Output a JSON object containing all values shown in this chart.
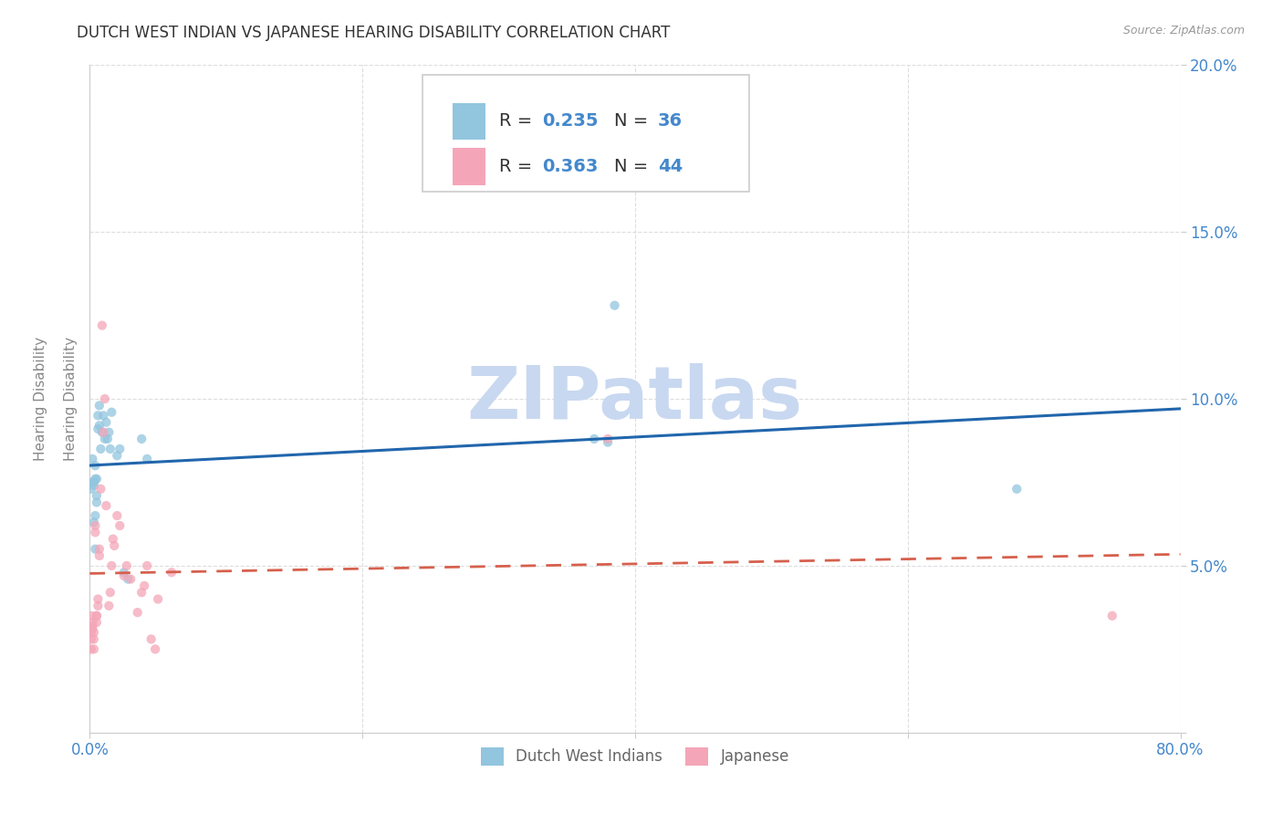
{
  "title": "DUTCH WEST INDIAN VS JAPANESE HEARING DISABILITY CORRELATION CHART",
  "source": "Source: ZipAtlas.com",
  "ylabel": "Hearing Disability",
  "watermark": "ZIPatlas",
  "legend_blue_r": "0.235",
  "legend_blue_n": "36",
  "legend_pink_r": "0.363",
  "legend_pink_n": "44",
  "legend_label_blue": "Dutch West Indians",
  "legend_label_pink": "Japanese",
  "xlim": [
    0.0,
    0.8
  ],
  "ylim": [
    0.0,
    0.2
  ],
  "xticks": [
    0.0,
    0.2,
    0.4,
    0.6,
    0.8
  ],
  "yticks": [
    0.0,
    0.05,
    0.1,
    0.15,
    0.2
  ],
  "blue_scatter_x": [
    0.001,
    0.002,
    0.002,
    0.003,
    0.003,
    0.003,
    0.004,
    0.004,
    0.004,
    0.004,
    0.005,
    0.005,
    0.005,
    0.006,
    0.006,
    0.007,
    0.007,
    0.008,
    0.009,
    0.01,
    0.011,
    0.012,
    0.013,
    0.014,
    0.015,
    0.016,
    0.02,
    0.022,
    0.025,
    0.028,
    0.038,
    0.042,
    0.37,
    0.38,
    0.385,
    0.68
  ],
  "blue_scatter_y": [
    0.073,
    0.082,
    0.075,
    0.075,
    0.074,
    0.063,
    0.08,
    0.076,
    0.065,
    0.055,
    0.076,
    0.071,
    0.069,
    0.095,
    0.091,
    0.098,
    0.092,
    0.085,
    0.09,
    0.095,
    0.088,
    0.093,
    0.088,
    0.09,
    0.085,
    0.096,
    0.083,
    0.085,
    0.048,
    0.046,
    0.088,
    0.082,
    0.088,
    0.087,
    0.128,
    0.073
  ],
  "pink_scatter_x": [
    0.001,
    0.001,
    0.001,
    0.001,
    0.002,
    0.002,
    0.002,
    0.003,
    0.003,
    0.003,
    0.004,
    0.004,
    0.005,
    0.005,
    0.005,
    0.006,
    0.006,
    0.007,
    0.007,
    0.008,
    0.009,
    0.01,
    0.011,
    0.012,
    0.014,
    0.015,
    0.016,
    0.017,
    0.018,
    0.02,
    0.022,
    0.025,
    0.027,
    0.03,
    0.035,
    0.038,
    0.04,
    0.042,
    0.045,
    0.048,
    0.05,
    0.06,
    0.38,
    0.75
  ],
  "pink_scatter_y": [
    0.035,
    0.03,
    0.028,
    0.025,
    0.032,
    0.033,
    0.031,
    0.03,
    0.028,
    0.025,
    0.062,
    0.06,
    0.035,
    0.035,
    0.033,
    0.04,
    0.038,
    0.055,
    0.053,
    0.073,
    0.122,
    0.09,
    0.1,
    0.068,
    0.038,
    0.042,
    0.05,
    0.058,
    0.056,
    0.065,
    0.062,
    0.047,
    0.05,
    0.046,
    0.036,
    0.042,
    0.044,
    0.05,
    0.028,
    0.025,
    0.04,
    0.048,
    0.088,
    0.035
  ],
  "blue_color": "#92c5de",
  "pink_color": "#f4a6b8",
  "blue_line_color": "#2166ac",
  "pink_line_color": "#d6604d",
  "background_color": "#ffffff",
  "grid_color": "#dddddd",
  "title_color": "#333333",
  "axis_tick_color": "#4488cc",
  "watermark_color": "#c8d8f0",
  "scatter_size": 55,
  "scatter_alpha": 0.75,
  "title_fontsize": 12,
  "axis_fontsize": 11,
  "tick_fontsize": 12,
  "legend_fontsize": 14
}
